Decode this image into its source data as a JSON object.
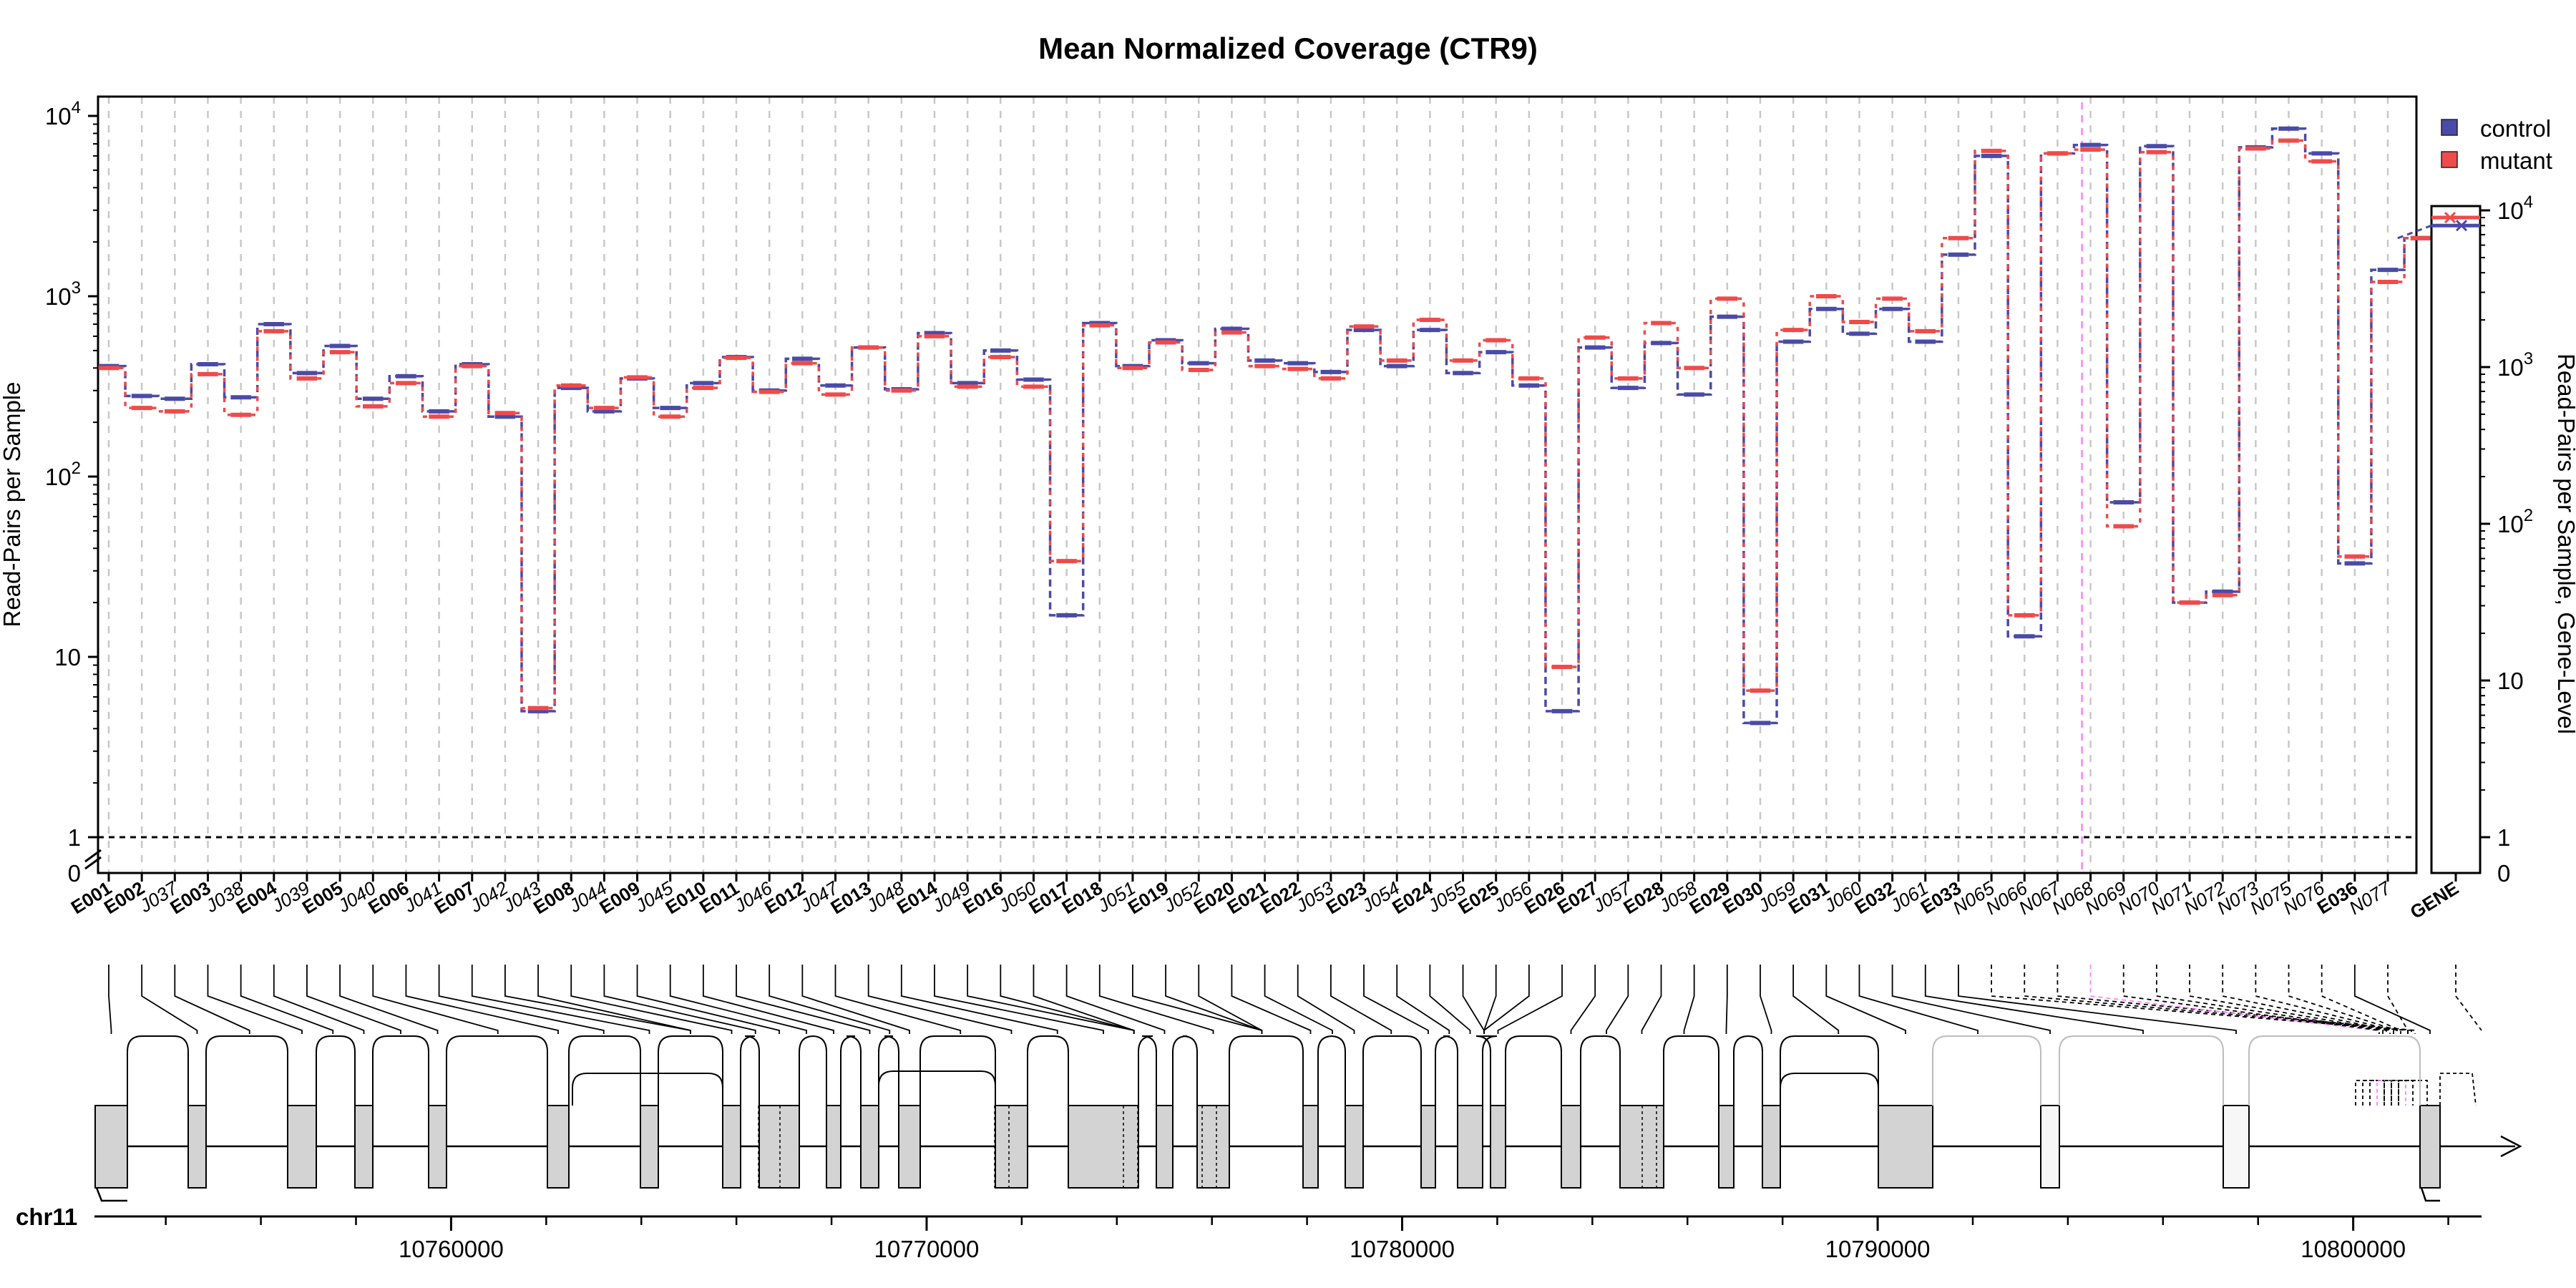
{
  "chart_data": {
    "type": "line",
    "title": "Mean Normalized Coverage (CTR9)",
    "ylabel": "Read-Pairs per Sample",
    "ylabel_right": "Read-Pairs per Sample, Gene-Level",
    "y_scale": "log",
    "ylim": [
      0.5,
      12000
    ],
    "y_ticks": [
      "1",
      "10",
      "10²",
      "10³",
      "10⁴"
    ],
    "y_zero_label": "0",
    "right_ticks": [
      "1",
      "10",
      "10²",
      "10³",
      "10⁴"
    ],
    "right_zero_label": "0",
    "threshold_line": 1,
    "grid": "vertical dashed",
    "legend_position": "top-right",
    "colors": {
      "control": "#4a4aa8",
      "mutant": "#f04a4a",
      "exon_fill": "#d3d3d3",
      "highlight": "#ff80ff"
    },
    "series": [
      {
        "name": "control",
        "values": [
          410,
          280,
          270,
          420,
          275,
          700,
          375,
          530,
          270,
          360,
          230,
          420,
          215,
          5,
          310,
          230,
          350,
          240,
          330,
          460,
          300,
          450,
          320,
          520,
          305,
          625,
          330,
          500,
          345,
          17,
          710,
          410,
          570,
          425,
          660,
          440,
          425,
          380,
          650,
          410,
          650,
          375,
          490,
          320,
          5,
          520,
          310,
          550,
          285,
          770,
          4.3,
          560,
          850,
          620,
          850,
          560,
          1700,
          6000,
          13,
          6200,
          6900,
          72,
          6800,
          20,
          23,
          6700,
          8500,
          6200,
          33,
          1400,
          2100
        ]
      },
      {
        "name": "mutant",
        "values": [
          400,
          240,
          230,
          370,
          220,
          640,
          350,
          490,
          245,
          330,
          215,
          410,
          225,
          5.2,
          320,
          240,
          355,
          215,
          310,
          455,
          295,
          425,
          285,
          520,
          300,
          600,
          315,
          460,
          315,
          34,
          690,
          400,
          555,
          390,
          630,
          410,
          395,
          350,
          680,
          440,
          740,
          440,
          570,
          350,
          8.8,
          590,
          350,
          710,
          400,
          970,
          6.5,
          650,
          1000,
          720,
          970,
          640,
          2100,
          6400,
          17,
          6200,
          6500,
          53,
          6300,
          20,
          22,
          6600,
          7300,
          5600,
          36,
          1200,
          2100
        ]
      }
    ],
    "gene_level": {
      "control": 8000,
      "mutant": 9000
    },
    "features": [
      {
        "id": "E001",
        "kind": "exon"
      },
      {
        "id": "E002",
        "kind": "exon"
      },
      {
        "id": "J037",
        "kind": "junction"
      },
      {
        "id": "E003",
        "kind": "exon"
      },
      {
        "id": "J038",
        "kind": "junction"
      },
      {
        "id": "E004",
        "kind": "exon"
      },
      {
        "id": "J039",
        "kind": "junction"
      },
      {
        "id": "E005",
        "kind": "exon"
      },
      {
        "id": "J040",
        "kind": "junction"
      },
      {
        "id": "E006",
        "kind": "exon"
      },
      {
        "id": "J041",
        "kind": "junction"
      },
      {
        "id": "E007",
        "kind": "exon"
      },
      {
        "id": "J042",
        "kind": "junction"
      },
      {
        "id": "J043",
        "kind": "junction"
      },
      {
        "id": "E008",
        "kind": "exon"
      },
      {
        "id": "J044",
        "kind": "junction"
      },
      {
        "id": "E009",
        "kind": "exon"
      },
      {
        "id": "J045",
        "kind": "junction"
      },
      {
        "id": "E010",
        "kind": "exon"
      },
      {
        "id": "E011",
        "kind": "exon"
      },
      {
        "id": "J046",
        "kind": "junction"
      },
      {
        "id": "E012",
        "kind": "exon"
      },
      {
        "id": "J047",
        "kind": "junction"
      },
      {
        "id": "E013",
        "kind": "exon"
      },
      {
        "id": "J048",
        "kind": "junction"
      },
      {
        "id": "E014",
        "kind": "exon"
      },
      {
        "id": "J049",
        "kind": "junction"
      },
      {
        "id": "E016",
        "kind": "exon"
      },
      {
        "id": "J050",
        "kind": "junction"
      },
      {
        "id": "E017",
        "kind": "exon"
      },
      {
        "id": "E018",
        "kind": "exon"
      },
      {
        "id": "J051",
        "kind": "junction"
      },
      {
        "id": "E019",
        "kind": "exon"
      },
      {
        "id": "J052",
        "kind": "junction"
      },
      {
        "id": "E020",
        "kind": "exon"
      },
      {
        "id": "E021",
        "kind": "exon"
      },
      {
        "id": "E022",
        "kind": "exon"
      },
      {
        "id": "J053",
        "kind": "junction"
      },
      {
        "id": "E023",
        "kind": "exon"
      },
      {
        "id": "J054",
        "kind": "junction"
      },
      {
        "id": "E024",
        "kind": "exon"
      },
      {
        "id": "J055",
        "kind": "junction"
      },
      {
        "id": "E025",
        "kind": "exon"
      },
      {
        "id": "J056",
        "kind": "junction"
      },
      {
        "id": "E026",
        "kind": "exon"
      },
      {
        "id": "E027",
        "kind": "exon"
      },
      {
        "id": "J057",
        "kind": "junction"
      },
      {
        "id": "E028",
        "kind": "exon"
      },
      {
        "id": "J058",
        "kind": "junction"
      },
      {
        "id": "E029",
        "kind": "exon"
      },
      {
        "id": "E030",
        "kind": "exon"
      },
      {
        "id": "J059",
        "kind": "junction"
      },
      {
        "id": "E031",
        "kind": "exon"
      },
      {
        "id": "J060",
        "kind": "junction"
      },
      {
        "id": "E032",
        "kind": "exon"
      },
      {
        "id": "J061",
        "kind": "junction"
      },
      {
        "id": "E033",
        "kind": "exon"
      },
      {
        "id": "N065",
        "kind": "novel"
      },
      {
        "id": "N066",
        "kind": "novel"
      },
      {
        "id": "N067",
        "kind": "novel"
      },
      {
        "id": "N068",
        "kind": "novel"
      },
      {
        "id": "N069",
        "kind": "novel"
      },
      {
        "id": "N070",
        "kind": "novel"
      },
      {
        "id": "N071",
        "kind": "novel"
      },
      {
        "id": "N072",
        "kind": "novel"
      },
      {
        "id": "N073",
        "kind": "novel"
      },
      {
        "id": "N075",
        "kind": "novel"
      },
      {
        "id": "N076",
        "kind": "novel"
      },
      {
        "id": "E036",
        "kind": "exon"
      },
      {
        "id": "N077",
        "kind": "novel"
      },
      {
        "id": "GENE",
        "kind": "gene"
      }
    ],
    "chromosome": "chr11",
    "genome_ticks": [
      "10760000",
      "10770000",
      "10780000",
      "10790000",
      "10800000"
    ],
    "genome_tick_values": [
      10760000,
      10770000,
      10780000,
      10790000,
      10800000
    ]
  }
}
